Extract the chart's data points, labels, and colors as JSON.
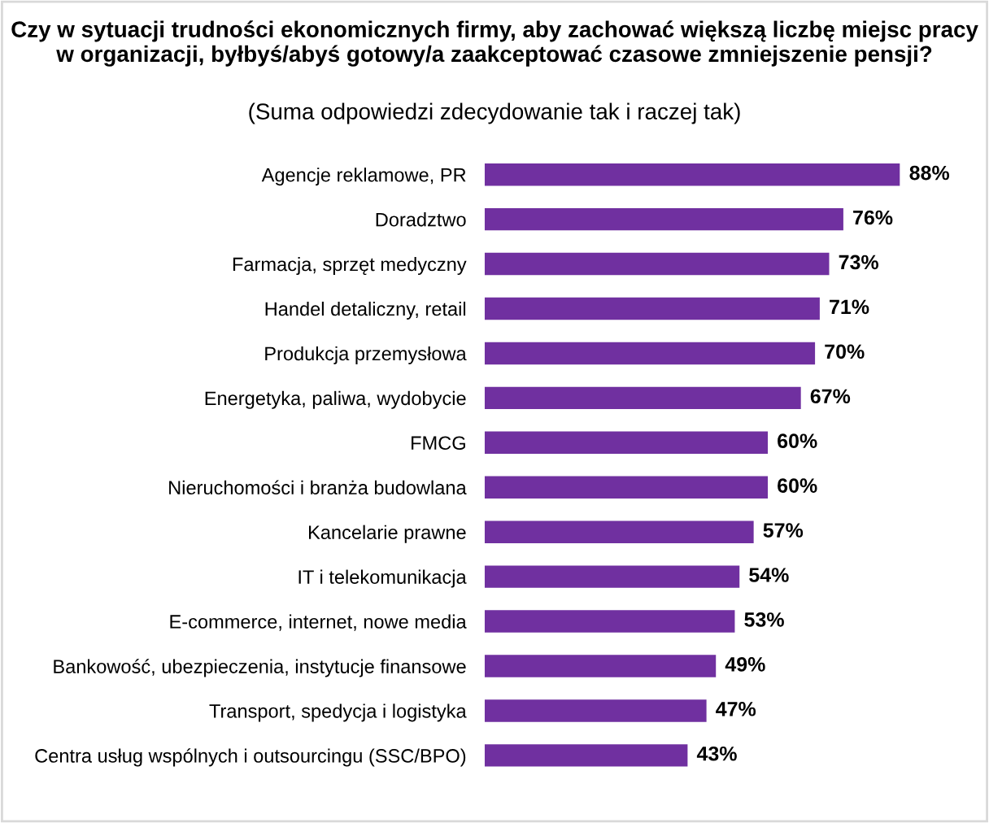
{
  "chart_data": {
    "type": "bar",
    "orientation": "horizontal",
    "title": "Czy w sytuacji trudności ekonomicznych firmy, aby zachować większą liczbę miejsc pracy w organizacji, byłbyś/abyś gotowy/a zaakceptować czasowe zmniejszenie pensji?",
    "subtitle": "(Suma odpowiedzi zdecydowanie tak i raczej tak)",
    "categories": [
      "Agencje reklamowe, PR",
      "Doradztwo",
      "Farmacja, sprzęt medyczny",
      "Handel detaliczny, retail",
      "Produkcja przemysłowa",
      "Energetyka, paliwa, wydobycie",
      "FMCG",
      "Nieruchomości i branża budowlana",
      "Kancelarie prawne",
      "IT i telekomunikacja",
      "E-commerce, internet, nowe media",
      "Bankowość, ubezpieczenia, instytucje finansowe",
      "Transport, spedycja i logistyka",
      "Centra usług wspólnych i outsourcingu (SSC/BPO)"
    ],
    "values": [
      88,
      76,
      73,
      71,
      70,
      67,
      60,
      60,
      57,
      54,
      53,
      49,
      47,
      43
    ],
    "value_labels": [
      "88%",
      "76%",
      "73%",
      "71%",
      "70%",
      "67%",
      "60%",
      "60%",
      "57%",
      "54%",
      "53%",
      "49%",
      "47%",
      "43%"
    ],
    "color": "#7030a0",
    "tick_labels": "y",
    "grid": false,
    "legend": false
  }
}
